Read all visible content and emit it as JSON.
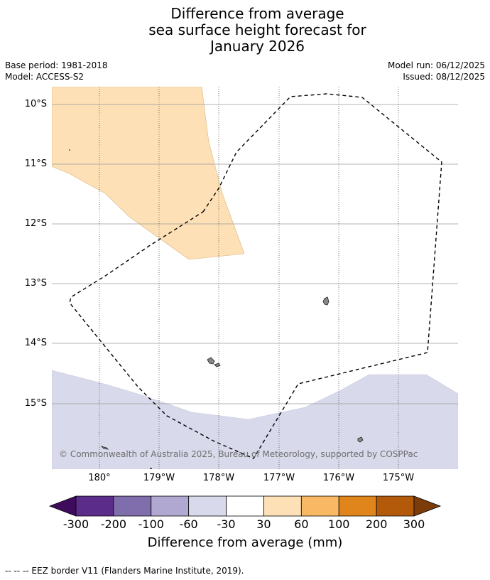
{
  "title": {
    "line1": "Difference from average",
    "line2": "sea surface height forecast for",
    "line3": "January 2026"
  },
  "meta": {
    "base_period": "Base period: 1981-2018",
    "model": "Model: ACCESS-S2",
    "model_run": "Model run: 06/12/2025",
    "issued": "Issued: 08/12/2025"
  },
  "map": {
    "lat_ticks": [
      "10°S",
      "11°S",
      "12°S",
      "13°S",
      "14°S",
      "15°S"
    ],
    "lon_ticks": [
      "180°",
      "179°W",
      "178°W",
      "177°W",
      "176°W",
      "175°W"
    ],
    "watermark": "© Commonwealth of Australia 2025, Bureau of Meteorology, supported by COSPPac",
    "regions": {
      "positive_anomaly_color": "#fde0b6",
      "negative_anomaly_color": "#d8d9ea",
      "land_color": "#888888",
      "eez_line": "dashed black"
    }
  },
  "colorbar": {
    "title": "Difference from average (mm)",
    "labels": [
      "-300",
      "-200",
      "-100",
      "-60",
      "-30",
      "30",
      "60",
      "100",
      "200",
      "300"
    ],
    "colors": [
      "#3f0c5d",
      "#5c2c8a",
      "#7f6eab",
      "#b0a8d1",
      "#d8d9ea",
      "#ffffff",
      "#fde0b6",
      "#f9b863",
      "#e0841c",
      "#b3590a",
      "#7c3c0a"
    ]
  },
  "footnote": "--  --  -- EEZ border V11 (Flanders Marine Institute, 2019)."
}
